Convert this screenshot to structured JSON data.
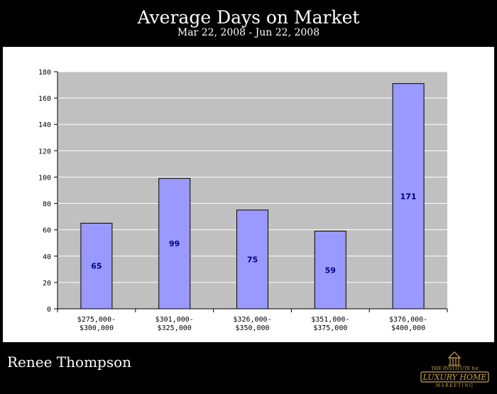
{
  "header": {
    "title": "Average Days on Market",
    "subtitle": "Mar 22, 2008 - Jun 22, 2008"
  },
  "footer": {
    "agent_name": "Renee Thompson",
    "logo": {
      "line1": "THE INSTITUTE for",
      "line2": "LUXURY HOME",
      "line3": "MARKETING"
    }
  },
  "colors": {
    "background": "#000000",
    "plot_area": "#c0c0c0",
    "bar_fill": "#9999ff",
    "bar_stroke": "#000000",
    "value_label": "#000080",
    "logo_gold": "#c9a24a"
  },
  "chart_data": {
    "type": "bar",
    "categories": [
      [
        "$275,000-",
        "$300,000"
      ],
      [
        "$301,000-",
        "$325,000"
      ],
      [
        "$326,000-",
        "$350,000"
      ],
      [
        "$351,000-",
        "$375,000"
      ],
      [
        "$376,000-",
        "$400,000"
      ]
    ],
    "values": [
      65,
      99,
      75,
      59,
      171
    ],
    "ylim": [
      0,
      180
    ],
    "yticks": [
      0,
      20,
      40,
      60,
      80,
      100,
      120,
      140,
      160,
      180
    ],
    "grid": true,
    "data_labels": true
  }
}
